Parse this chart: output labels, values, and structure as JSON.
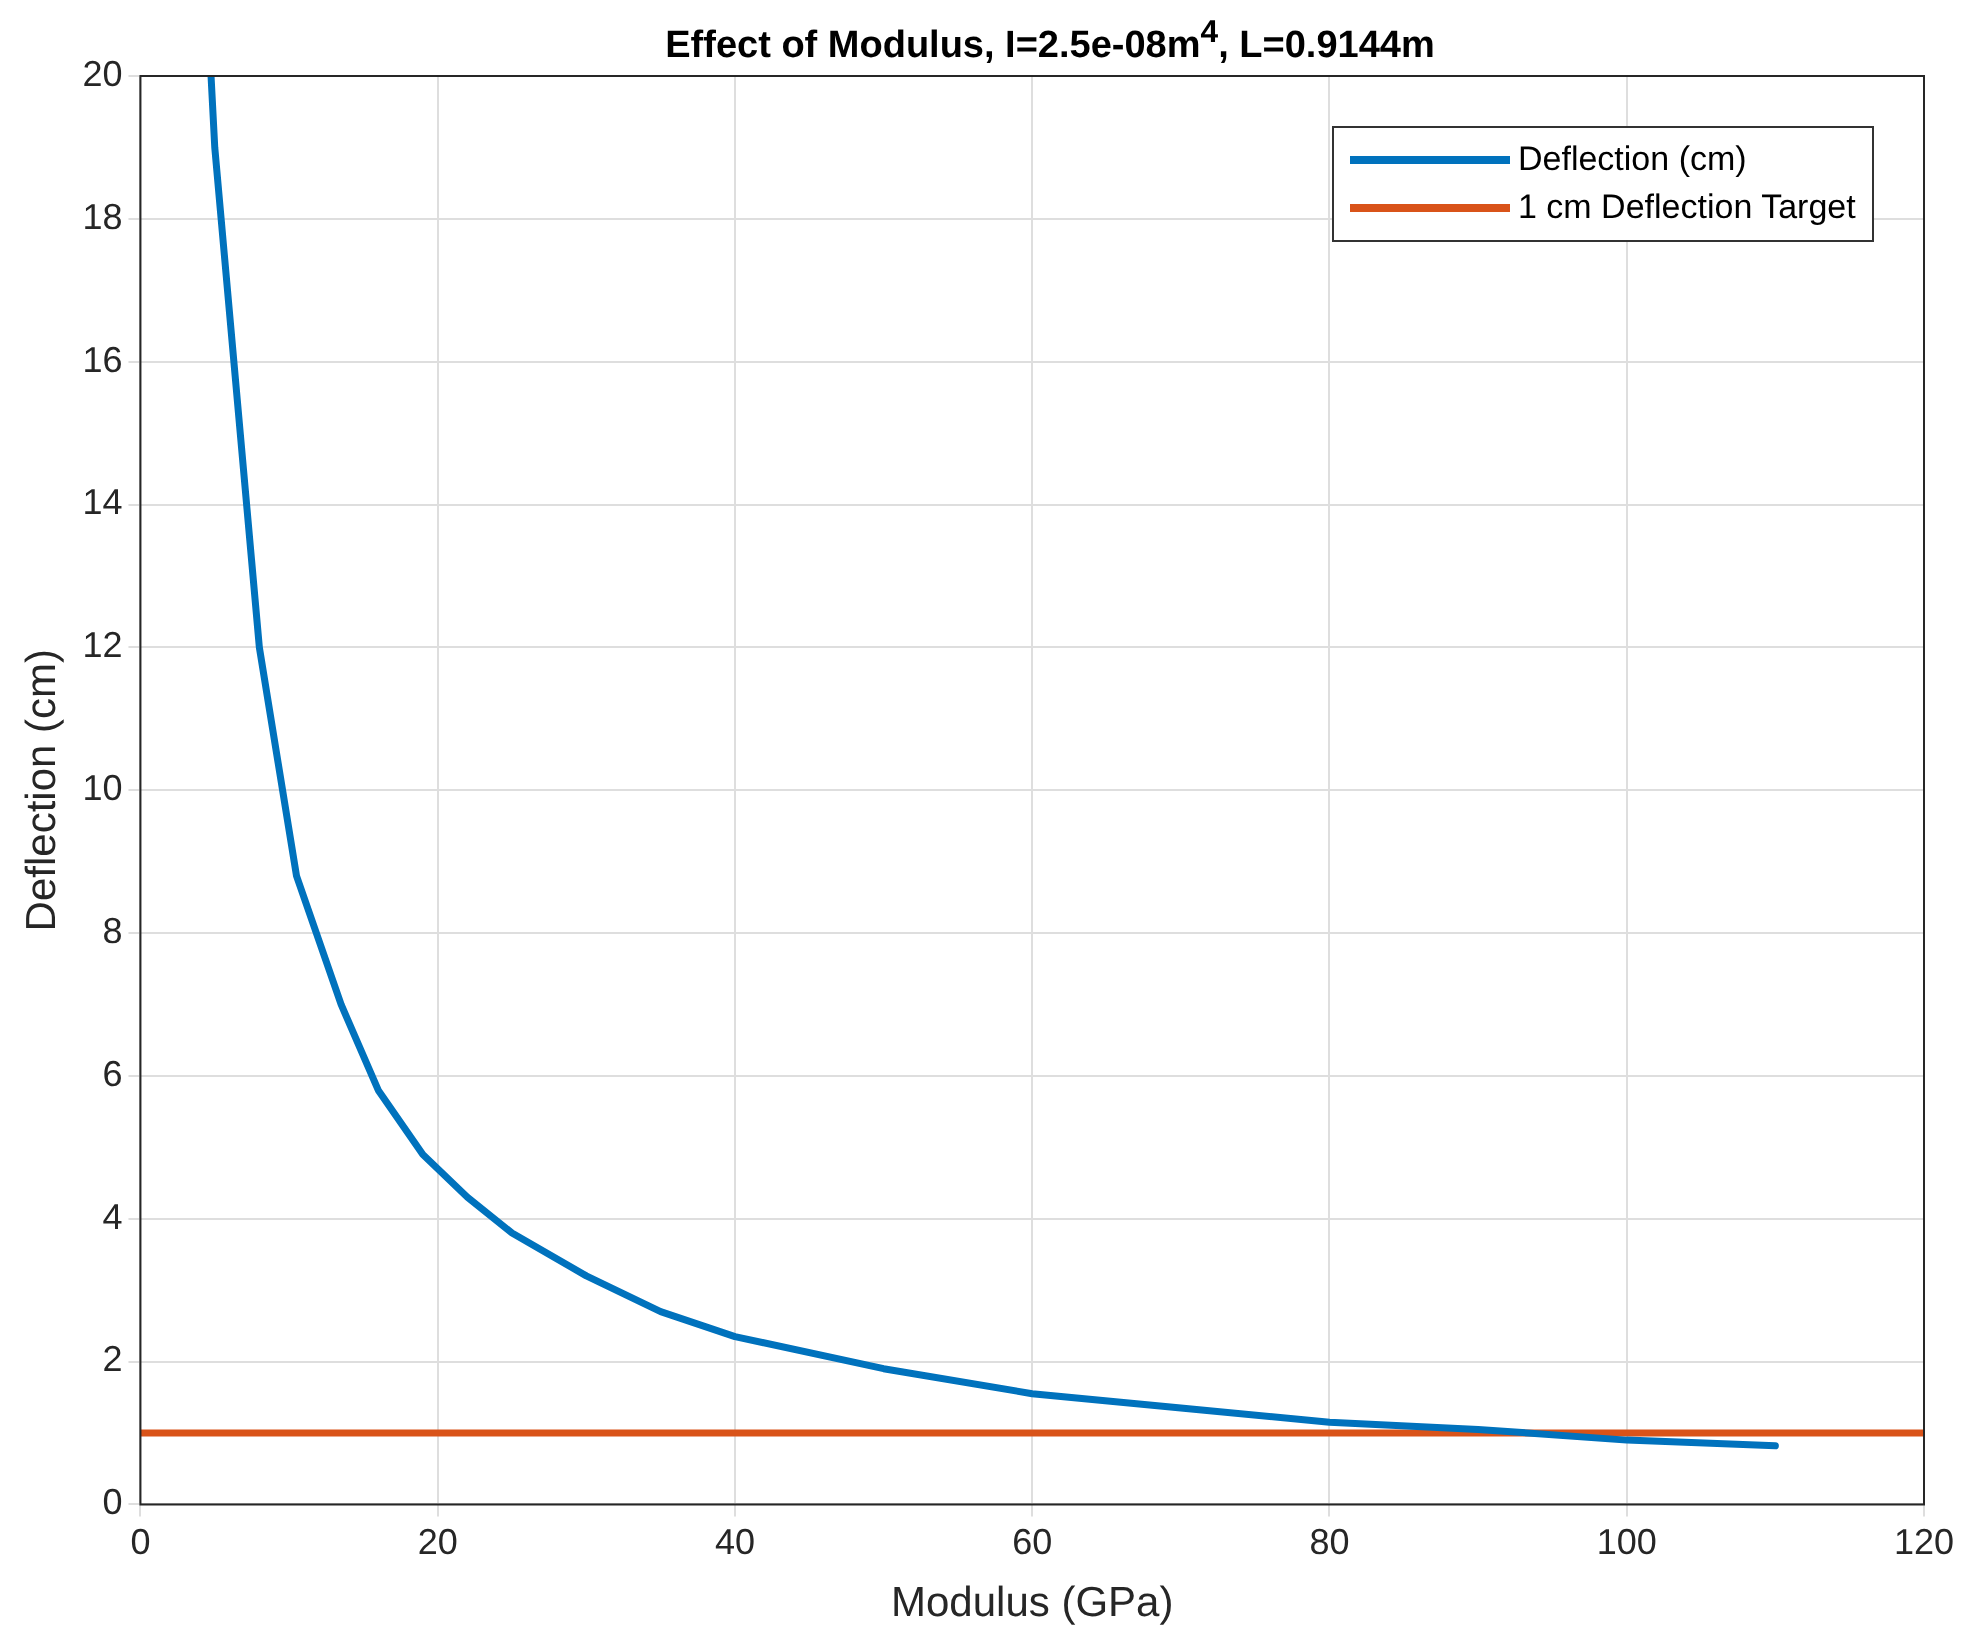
{
  "chart_data": {
    "type": "line",
    "title": "Effect of Modulus, I=2.5e-08m$^{4}$, L=0.9144m",
    "xlabel": "Modulus (GPa)",
    "ylabel": "Deflection (cm)",
    "xlim": [
      0,
      120
    ],
    "xticks": [
      0,
      20,
      40,
      60,
      80,
      100,
      120
    ],
    "ylim": [
      0,
      20
    ],
    "yticks": [
      0,
      2,
      4,
      6,
      8,
      10,
      12,
      14,
      16,
      18,
      20
    ],
    "grid": true,
    "legend": "top right",
    "marker": "none",
    "line_style": "solid",
    "series": [
      {
        "name": "Deflection (cm)",
        "color": "#0072bd",
        "x": [
          4.75,
          5,
          8,
          10.5,
          13.5,
          16,
          19,
          22,
          25,
          30,
          35,
          40,
          50,
          60,
          70,
          80,
          90,
          100,
          110
        ],
        "values": [
          20,
          19,
          12,
          8.8,
          7,
          5.8,
          4.9,
          4.3,
          3.8,
          3.2,
          2.7,
          2.35,
          1.9,
          1.55,
          1.35,
          1.15,
          1.05,
          0.9,
          0.82
        ]
      },
      {
        "name": "1 cm Deflection Target",
        "color": "#d95319",
        "x": [
          0,
          120
        ],
        "values": [
          1,
          1
        ]
      }
    ]
  }
}
